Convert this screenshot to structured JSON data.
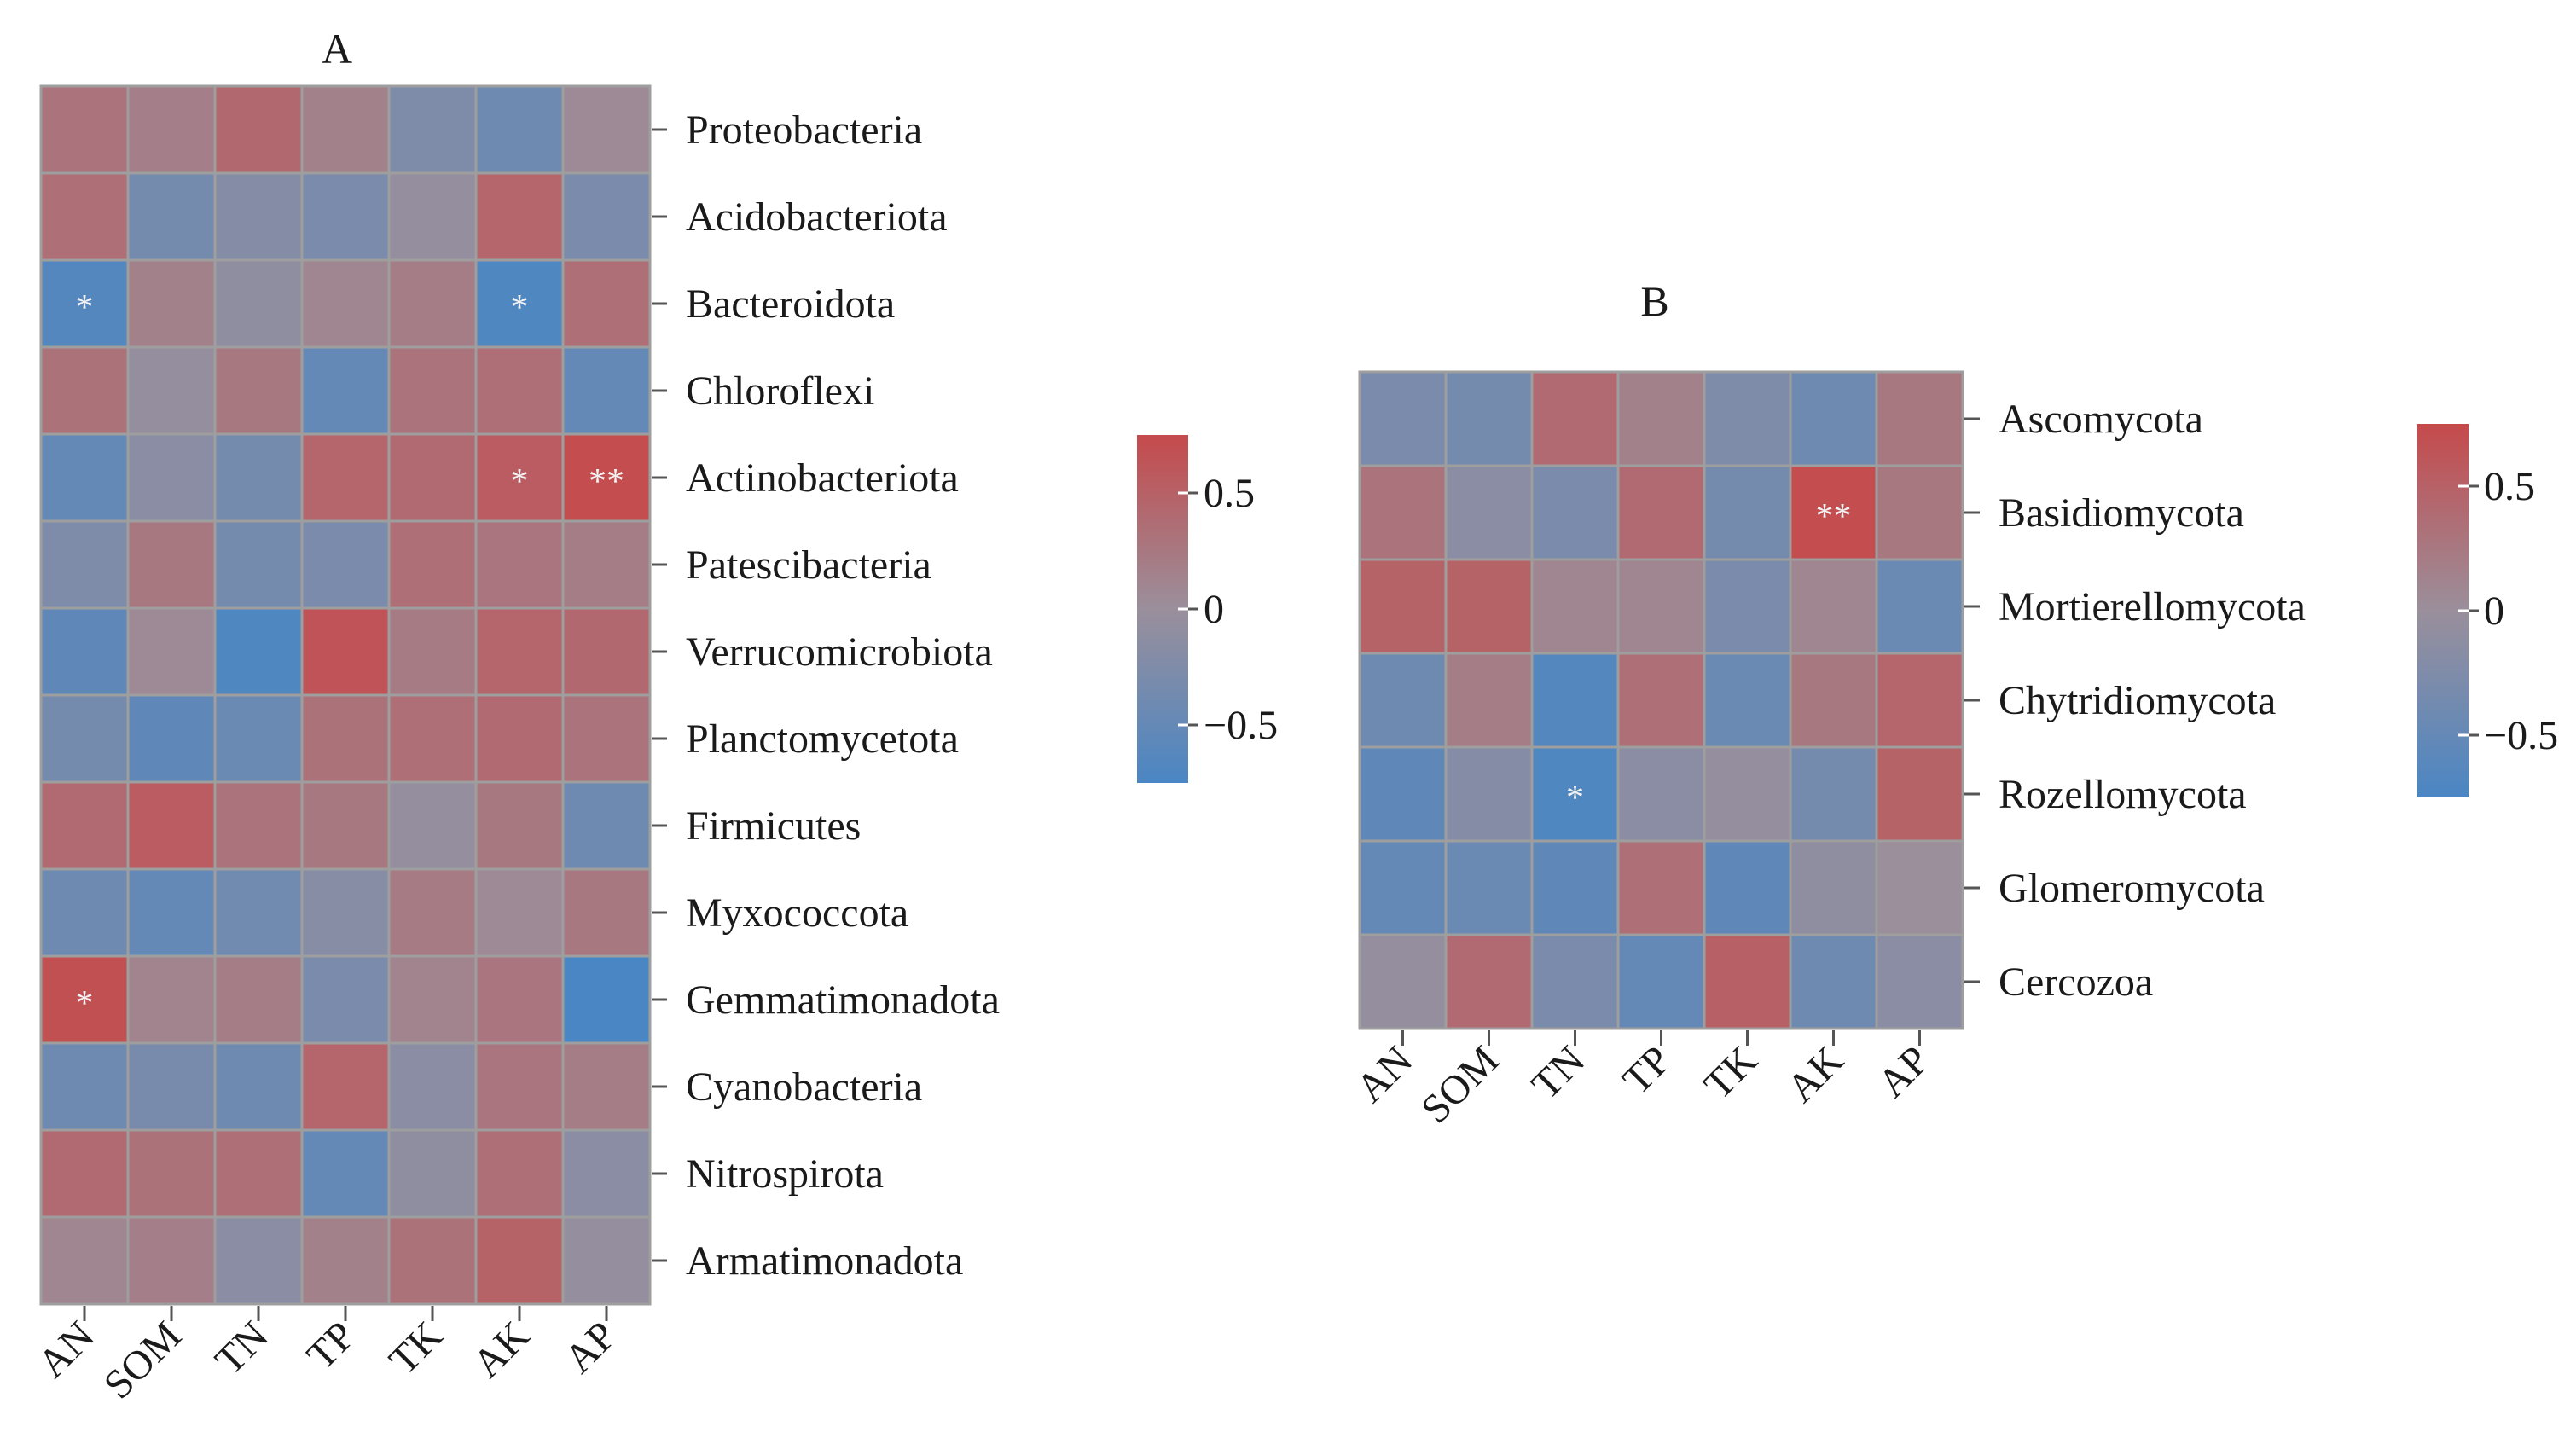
{
  "chart_data": [
    {
      "type": "heatmap",
      "title": "A",
      "columns": [
        "AN",
        "SOM",
        "TN",
        "TP",
        "TK",
        "AK",
        "AP"
      ],
      "rows": [
        "Proteobacteria",
        "Acidobacteriota",
        "Bacteroidota",
        "Chloroflexi",
        "Actinobacteriota",
        "Patescibacteria",
        "Verrucomicrobiota",
        "Planctomycetota",
        "Firmicutes",
        "Myxococcota",
        "Gemmatimonadota",
        "Cyanobacteria",
        "Nitrospirota",
        "Armatimonadota"
      ],
      "values": [
        [
          0.3,
          0.18,
          0.42,
          0.15,
          -0.25,
          -0.4,
          0.05
        ],
        [
          0.35,
          -0.35,
          -0.2,
          -0.3,
          -0.05,
          0.45,
          -0.3
        ],
        [
          -0.65,
          0.15,
          -0.1,
          0.1,
          0.2,
          -0.7,
          0.35
        ],
        [
          0.32,
          -0.05,
          0.25,
          -0.5,
          0.3,
          0.35,
          -0.5
        ],
        [
          -0.5,
          -0.15,
          -0.35,
          0.45,
          0.4,
          0.55,
          0.72
        ],
        [
          -0.25,
          0.25,
          -0.35,
          -0.3,
          0.35,
          0.28,
          0.2
        ],
        [
          -0.55,
          0.05,
          -0.7,
          0.65,
          0.22,
          0.45,
          0.42
        ],
        [
          -0.35,
          -0.55,
          -0.45,
          0.32,
          0.35,
          0.4,
          0.3
        ],
        [
          0.4,
          0.55,
          0.3,
          0.25,
          -0.05,
          0.25,
          -0.4
        ],
        [
          -0.4,
          -0.5,
          -0.38,
          -0.18,
          0.22,
          0.05,
          0.25
        ],
        [
          0.68,
          0.12,
          0.2,
          -0.3,
          0.12,
          0.28,
          -0.75
        ],
        [
          -0.4,
          -0.32,
          -0.4,
          0.45,
          -0.15,
          0.28,
          0.2
        ],
        [
          0.4,
          0.32,
          0.35,
          -0.5,
          -0.1,
          0.35,
          -0.15
        ],
        [
          0.1,
          0.18,
          -0.15,
          0.15,
          0.32,
          0.48,
          -0.05
        ]
      ],
      "significance": [
        [
          "",
          "",
          "",
          "",
          "",
          "",
          ""
        ],
        [
          "",
          "",
          "",
          "",
          "",
          "",
          ""
        ],
        [
          "*",
          "",
          "",
          "",
          "",
          "*",
          ""
        ],
        [
          "",
          "",
          "",
          "",
          "",
          "",
          ""
        ],
        [
          "",
          "",
          "",
          "",
          "",
          "*",
          "**"
        ],
        [
          "",
          "",
          "",
          "",
          "",
          "",
          ""
        ],
        [
          "",
          "",
          "",
          "",
          "",
          "",
          ""
        ],
        [
          "",
          "",
          "",
          "",
          "",
          "",
          ""
        ],
        [
          "",
          "",
          "",
          "",
          "",
          "",
          ""
        ],
        [
          "",
          "",
          "",
          "",
          "",
          "",
          ""
        ],
        [
          "*",
          "",
          "",
          "",
          "",
          "",
          ""
        ],
        [
          "",
          "",
          "",
          "",
          "",
          "",
          ""
        ],
        [
          "",
          "",
          "",
          "",
          "",
          "",
          ""
        ],
        [
          "",
          "",
          "",
          "",
          "",
          "",
          ""
        ]
      ],
      "colorbar": {
        "range": [
          -0.75,
          0.75
        ],
        "ticks": [
          0.5,
          0,
          -0.5
        ],
        "tick_labels": [
          "0.5",
          "0",
          "−0.5"
        ]
      }
    },
    {
      "type": "heatmap",
      "title": "B",
      "columns": [
        "AN",
        "SOM",
        "TN",
        "TP",
        "TK",
        "AK",
        "AP"
      ],
      "rows": [
        "Ascomycota",
        "Basidiomycota",
        "Mortierellomycota",
        "Chytridiomycota",
        "Rozellomycota",
        "Glomeromycota",
        "Cercozoa"
      ],
      "values": [
        [
          -0.3,
          -0.35,
          0.4,
          0.15,
          -0.25,
          -0.4,
          0.25
        ],
        [
          0.3,
          -0.15,
          -0.3,
          0.4,
          -0.35,
          0.72,
          0.25
        ],
        [
          0.48,
          0.48,
          0.1,
          0.1,
          -0.3,
          0.1,
          -0.45
        ],
        [
          -0.4,
          0.2,
          -0.65,
          0.35,
          -0.45,
          0.25,
          0.45
        ],
        [
          -0.55,
          -0.2,
          -0.7,
          -0.15,
          -0.05,
          -0.35,
          0.48
        ],
        [
          -0.5,
          -0.45,
          -0.55,
          0.35,
          -0.55,
          -0.1,
          0.0
        ],
        [
          -0.05,
          0.4,
          -0.3,
          -0.5,
          0.5,
          -0.4,
          -0.15
        ]
      ],
      "significance": [
        [
          "",
          "",
          "",
          "",
          "",
          "",
          ""
        ],
        [
          "",
          "",
          "",
          "",
          "",
          "**",
          ""
        ],
        [
          "",
          "",
          "",
          "",
          "",
          "",
          ""
        ],
        [
          "",
          "",
          "",
          "",
          "",
          "",
          ""
        ],
        [
          "",
          "",
          "*",
          "",
          "",
          "",
          ""
        ],
        [
          "",
          "",
          "",
          "",
          "",
          "",
          ""
        ],
        [
          "",
          "",
          "",
          "",
          "",
          "",
          ""
        ]
      ],
      "colorbar": {
        "range": [
          -0.75,
          0.75
        ],
        "ticks": [
          0.5,
          0,
          -0.5
        ],
        "tick_labels": [
          "0.5",
          "0",
          "−0.5"
        ]
      }
    }
  ],
  "colors": {
    "low": "#4a86c4",
    "mid": "#9a8f9b",
    "high": "#c54a4c",
    "grid": "#9e9e9e",
    "star": "#f2f2f2"
  }
}
